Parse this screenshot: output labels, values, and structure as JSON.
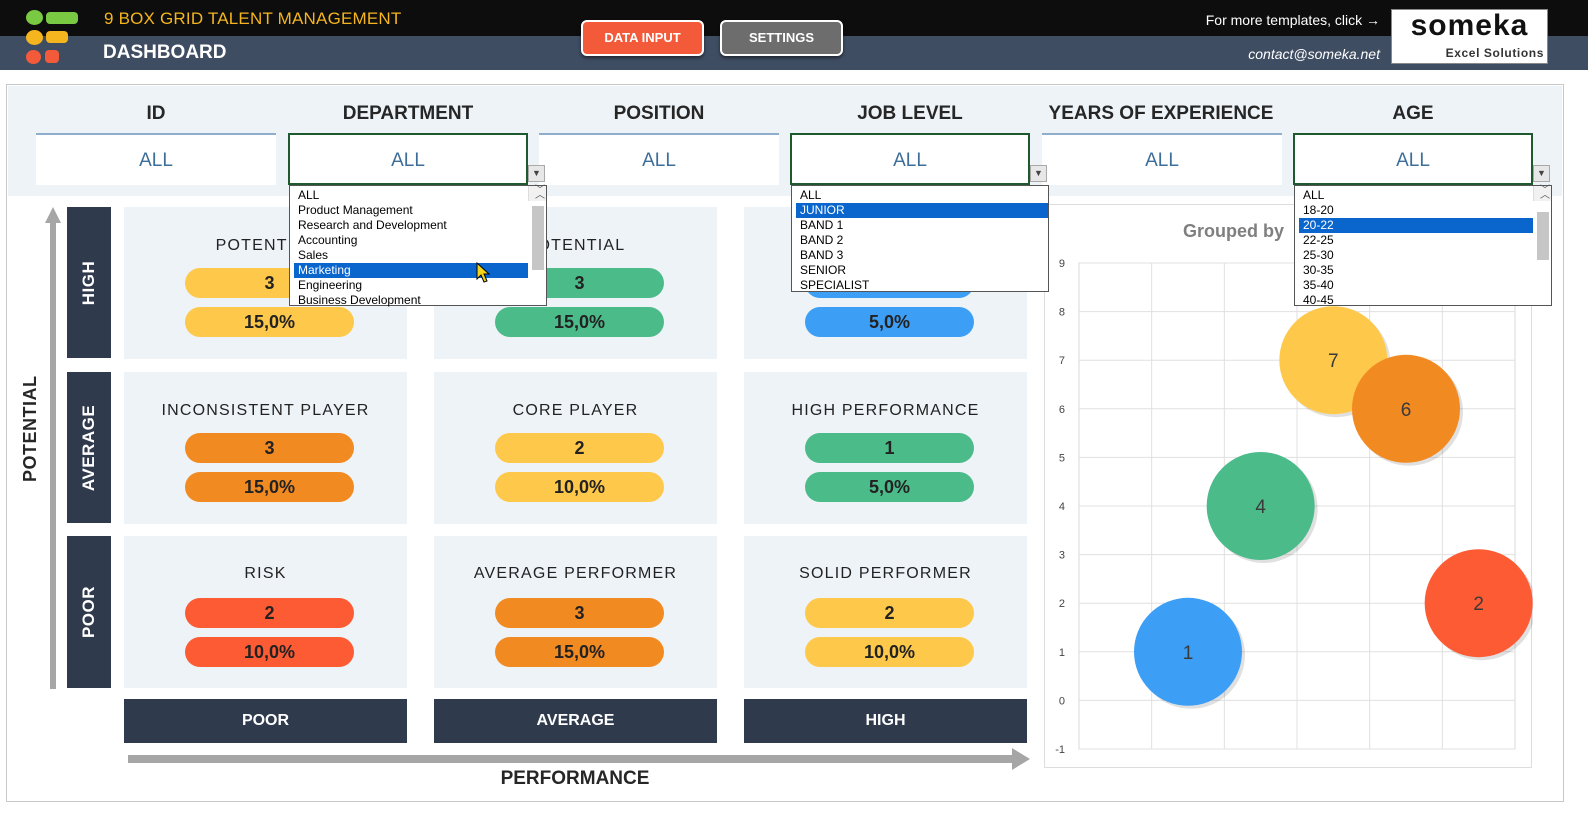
{
  "header": {
    "app_title": "9 BOX GRID TALENT MANAGEMENT",
    "page_title": "DASHBOARD",
    "data_input_label": "DATA INPUT",
    "settings_label": "SETTINGS",
    "more_templates": "For more templates, click →",
    "contact": "contact@someka.net",
    "brand_name": "someka",
    "brand_sub": "Excel Solutions",
    "colors": {
      "title": "#f5b51e",
      "data_input": "#f25a3a",
      "settings": "#6d6d6d"
    }
  },
  "filters": [
    {
      "label": "ID",
      "value": "ALL"
    },
    {
      "label": "DEPARTMENT",
      "value": "ALL"
    },
    {
      "label": "POSITION",
      "value": "ALL"
    },
    {
      "label": "JOB LEVEL",
      "value": "ALL"
    },
    {
      "label": "YEARS OF EXPERIENCE",
      "value": "ALL"
    },
    {
      "label": "AGE",
      "value": "ALL"
    }
  ],
  "dropdowns": {
    "department": {
      "options": [
        "ALL",
        "Product Management",
        "Research and Development",
        "Accounting",
        "Sales",
        "Marketing",
        "Engineering",
        "Business Development"
      ],
      "selected": "Marketing"
    },
    "job_level": {
      "options": [
        "ALL",
        "JUNIOR",
        "BAND 1",
        "BAND 2",
        "BAND 3",
        "SENIOR",
        "SPECIALIST"
      ],
      "selected": "JUNIOR"
    },
    "age": {
      "options": [
        "ALL",
        "18-20",
        "20-22",
        "22-25",
        "25-30",
        "30-35",
        "35-40",
        "40-45"
      ],
      "selected": "20-22"
    }
  },
  "grid": {
    "row_labels": [
      "HIGH",
      "AVERAGE",
      "POOR"
    ],
    "col_labels": [
      "POOR",
      "AVERAGE",
      "HIGH"
    ],
    "axis_y": "POTENTIAL",
    "axis_x": "PERFORMANCE",
    "cells": [
      {
        "title": "POTENTIAL",
        "count": "3",
        "pct": "15,0%",
        "color": "#fec84a"
      },
      {
        "title": "POTENTIAL",
        "count": "3",
        "pct": "15,0%",
        "color": "#4cbb8a"
      },
      {
        "title": "",
        "count": "",
        "pct": "5,0%",
        "color": "#3d9ef5"
      },
      {
        "title": "INCONSISTENT PLAYER",
        "count": "3",
        "pct": "15,0%",
        "color": "#f28a22"
      },
      {
        "title": "CORE PLAYER",
        "count": "2",
        "pct": "10,0%",
        "color": "#fec84a"
      },
      {
        "title": "HIGH PERFORMANCE",
        "count": "1",
        "pct": "5,0%",
        "color": "#4cbb8a"
      },
      {
        "title": "RISK",
        "count": "2",
        "pct": "10,0%",
        "color": "#fd5b34"
      },
      {
        "title": "AVERAGE PERFORMER",
        "count": "3",
        "pct": "15,0%",
        "color": "#f28a22"
      },
      {
        "title": "SOLID PERFORMER",
        "count": "2",
        "pct": "10,0%",
        "color": "#fec84a"
      }
    ]
  },
  "chart_data": {
    "type": "scatter",
    "title": "Grouped by",
    "ylim": [
      -1,
      9
    ],
    "yticks": [
      "-1",
      "0",
      "1",
      "2",
      "3",
      "4",
      "5",
      "6",
      "7",
      "8",
      "9"
    ],
    "xlim": [
      0,
      6
    ],
    "points": [
      {
        "label": "1",
        "x": 1.5,
        "y": 1,
        "color": "#3d9ef5"
      },
      {
        "label": "4",
        "x": 2.5,
        "y": 4,
        "color": "#4cbb8a"
      },
      {
        "label": "7",
        "x": 3.5,
        "y": 7,
        "color": "#fec84a"
      },
      {
        "label": "6",
        "x": 4.5,
        "y": 6,
        "color": "#f28a22"
      },
      {
        "label": "2",
        "x": 5.5,
        "y": 2,
        "color": "#fd5b34"
      }
    ]
  }
}
